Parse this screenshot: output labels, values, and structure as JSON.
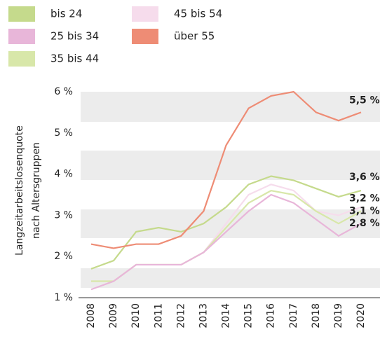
{
  "chart_data": {
    "type": "line",
    "ylabel": [
      "Langzeitarbeitslosenquote",
      "nach Altersgruppen"
    ],
    "categories": [
      "2008",
      "2009",
      "2010",
      "2011",
      "2012",
      "2013",
      "2014",
      "2015",
      "2016",
      "2017",
      "2018",
      "2019",
      "2020"
    ],
    "ylim": [
      1,
      6
    ],
    "yticks": [
      {
        "value": 1,
        "label": "1 %"
      },
      {
        "value": 2,
        "label": "2 %"
      },
      {
        "value": 3,
        "label": "3 %"
      },
      {
        "value": 4,
        "label": "4 %"
      },
      {
        "value": 5,
        "label": "5 %"
      },
      {
        "value": 6,
        "label": "6 %"
      }
    ],
    "series": [
      {
        "name": "bis 24",
        "color": "#c5da8c",
        "values": [
          1.7,
          1.9,
          2.6,
          2.7,
          2.6,
          2.8,
          3.2,
          3.75,
          3.95,
          3.85,
          3.65,
          3.45,
          3.6
        ],
        "value_labels": [
          null,
          null,
          null,
          null,
          null,
          null,
          null,
          null,
          null,
          null,
          null,
          null,
          "3,6 %"
        ]
      },
      {
        "name": "25 bis 34",
        "color": "#e8b6d9",
        "values": [
          1.2,
          1.4,
          1.8,
          1.8,
          1.8,
          2.1,
          2.6,
          3.1,
          3.5,
          3.3,
          2.9,
          2.5,
          2.8
        ],
        "value_labels": [
          null,
          null,
          null,
          null,
          null,
          null,
          null,
          null,
          null,
          null,
          null,
          null,
          "2,8 %"
        ]
      },
      {
        "name": "35 bis 44",
        "color": "#d8e7a9",
        "values": [
          1.4,
          1.4,
          1.8,
          1.8,
          1.8,
          2.1,
          2.7,
          3.3,
          3.6,
          3.5,
          3.1,
          2.8,
          3.1
        ],
        "value_labels": [
          null,
          null,
          null,
          null,
          null,
          null,
          null,
          null,
          null,
          null,
          null,
          null,
          "3,1 %"
        ]
      },
      {
        "name": "45 bis 54",
        "color": "#f6dcec",
        "values": [
          1.4,
          1.4,
          1.8,
          1.8,
          1.8,
          2.1,
          2.8,
          3.5,
          3.75,
          3.6,
          3.1,
          3.0,
          3.2
        ],
        "value_labels": [
          null,
          null,
          null,
          null,
          null,
          null,
          null,
          null,
          null,
          null,
          null,
          null,
          "3,2 %"
        ]
      },
      {
        "name": "über 55",
        "color": "#ee8c75",
        "values": [
          2.3,
          2.2,
          2.3,
          2.3,
          2.5,
          3.1,
          4.7,
          5.6,
          5.9,
          6.0,
          5.5,
          5.3,
          5.5
        ],
        "value_labels": [
          null,
          null,
          null,
          null,
          null,
          null,
          null,
          null,
          null,
          null,
          null,
          null,
          "5,5 %"
        ]
      }
    ]
  }
}
